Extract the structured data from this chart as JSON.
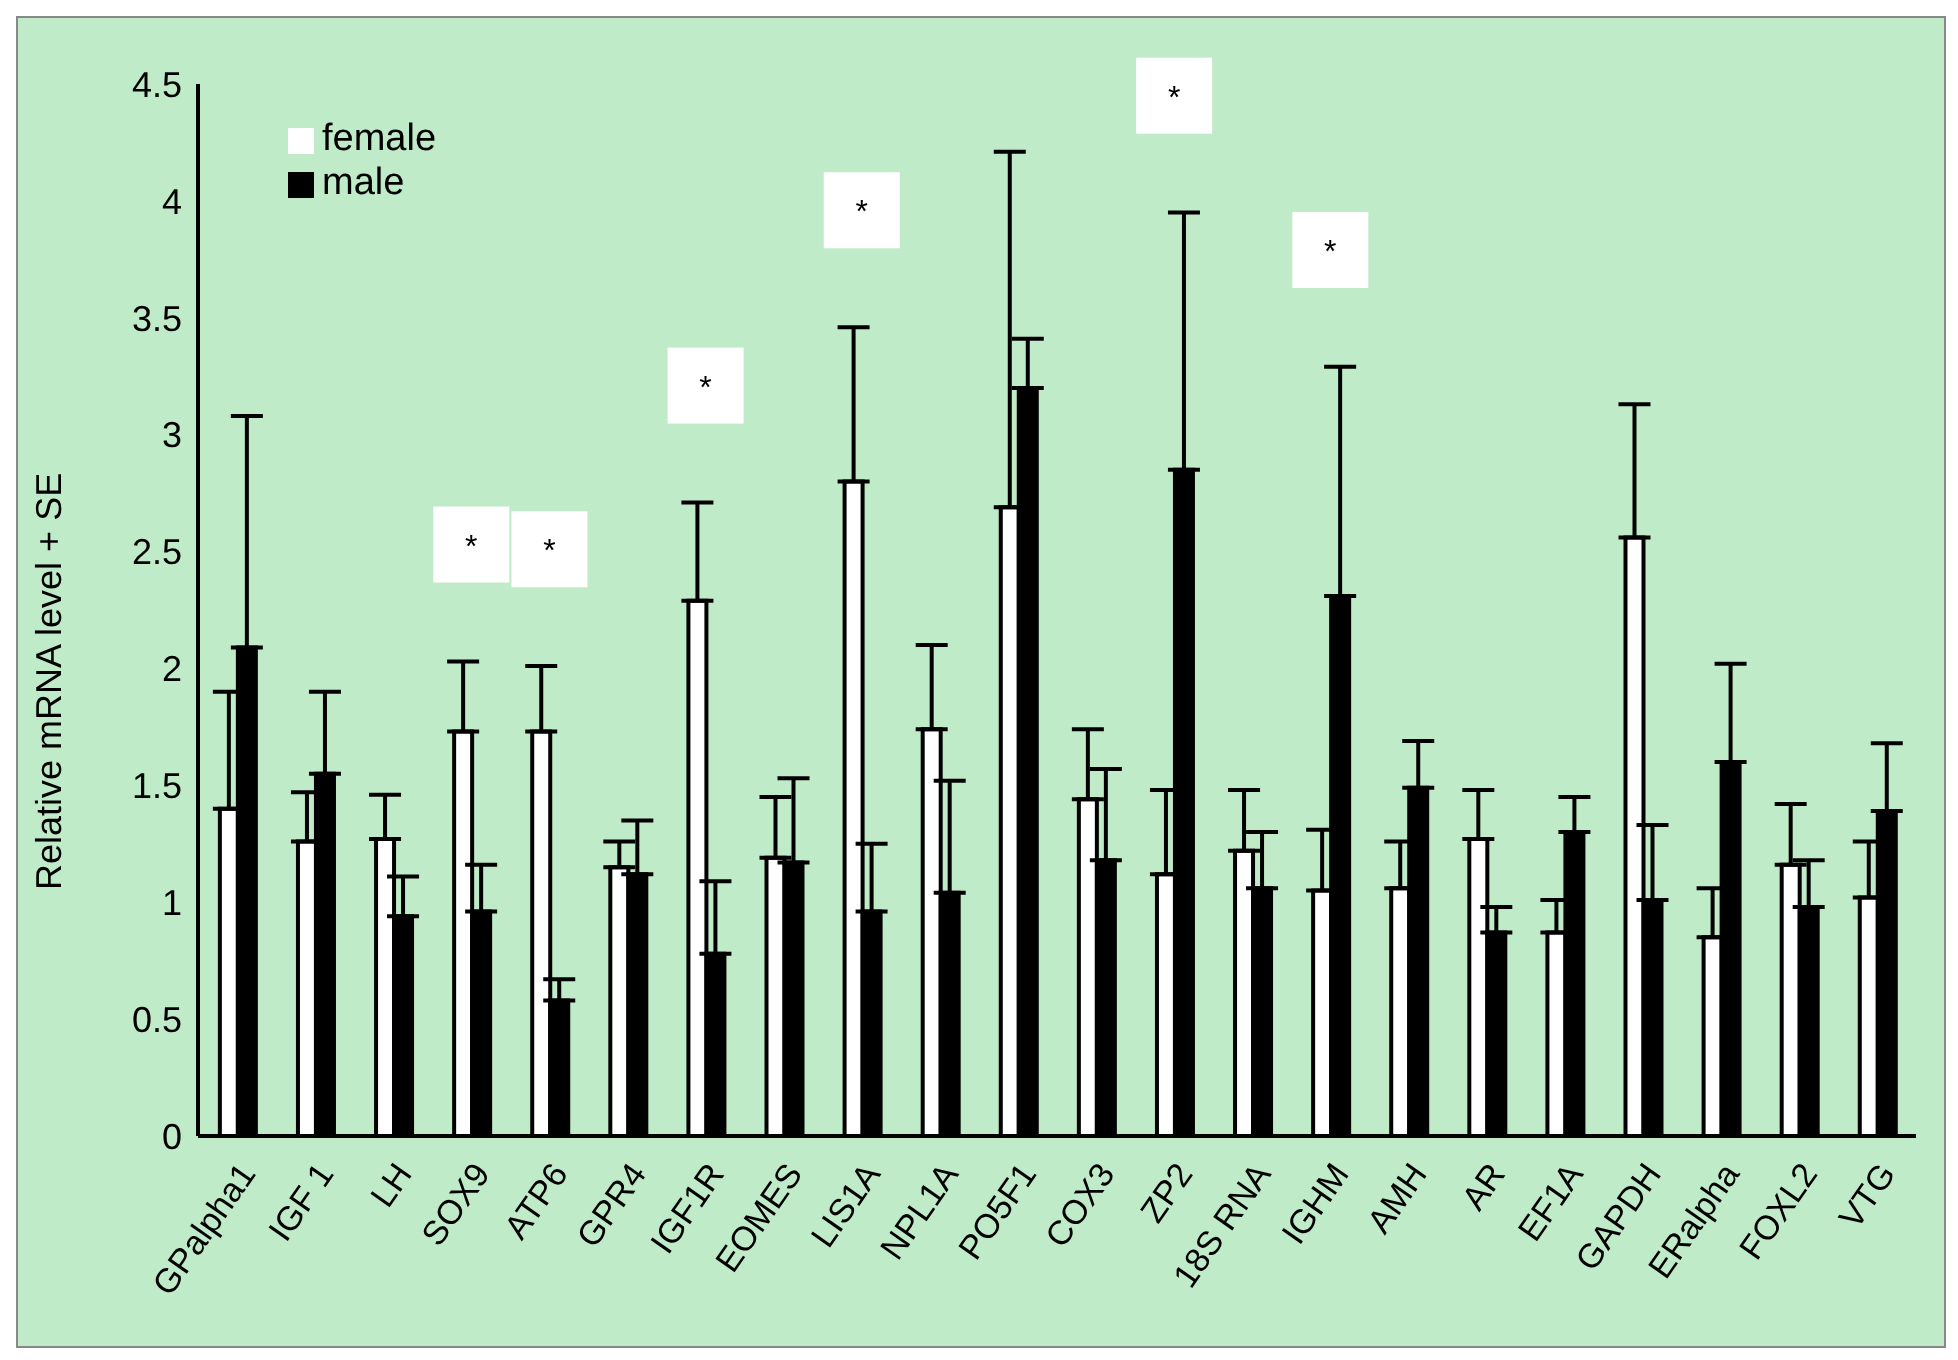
{
  "chart_data": {
    "type": "bar",
    "ylabel": "Relative mRNA  level + SE",
    "categories": [
      "GPalpha1",
      "IGF 1",
      "LH",
      "SOX9",
      "ATP6",
      "GPR4",
      "IGF1R",
      "EOMES",
      "LIS1A",
      "NPL1A",
      "PO5F1",
      "COX3",
      "ZP2",
      "18S RNA",
      "IGHM",
      "AMH",
      "AR",
      "EF1A",
      "GAPDH",
      "ERalpha",
      "FOXL2",
      "VTG"
    ],
    "series": [
      {
        "name": "female",
        "color": "#ffffff",
        "values": [
          1.4,
          1.26,
          1.27,
          1.73,
          1.73,
          1.15,
          2.29,
          1.19,
          2.8,
          1.74,
          2.69,
          1.44,
          1.12,
          1.22,
          1.05,
          1.06,
          1.27,
          0.87,
          2.56,
          0.85,
          1.16,
          1.02
        ],
        "errors": [
          [
            1.4,
            1.9
          ],
          [
            1.26,
            1.47
          ],
          [
            1.27,
            1.46
          ],
          [
            1.73,
            2.03
          ],
          [
            1.73,
            2.01
          ],
          [
            1.15,
            1.26
          ],
          [
            2.29,
            2.71
          ],
          [
            1.19,
            1.45
          ],
          [
            2.8,
            3.46
          ],
          [
            1.74,
            2.1
          ],
          [
            2.69,
            4.21
          ],
          [
            1.44,
            1.74
          ],
          [
            1.12,
            1.48
          ],
          [
            1.22,
            1.48
          ],
          [
            1.05,
            1.31
          ],
          [
            1.06,
            1.26
          ],
          [
            1.27,
            1.48
          ],
          [
            0.87,
            1.01
          ],
          [
            2.56,
            3.13
          ],
          [
            0.85,
            1.06
          ],
          [
            1.16,
            1.42
          ],
          [
            1.02,
            1.26
          ]
        ]
      },
      {
        "name": "male",
        "color": "#000000",
        "values": [
          2.09,
          1.55,
          0.94,
          0.96,
          0.58,
          1.12,
          0.78,
          1.17,
          0.96,
          1.04,
          3.2,
          1.18,
          2.85,
          1.06,
          2.31,
          1.49,
          0.87,
          1.3,
          1.01,
          1.6,
          0.98,
          1.39
        ],
        "errors": [
          [
            2.09,
            3.08
          ],
          [
            1.55,
            1.9
          ],
          [
            0.94,
            1.11
          ],
          [
            0.96,
            1.16
          ],
          [
            0.58,
            0.67
          ],
          [
            1.12,
            1.35
          ],
          [
            0.78,
            1.09
          ],
          [
            1.17,
            1.53
          ],
          [
            0.96,
            1.25
          ],
          [
            1.04,
            1.52
          ],
          [
            3.2,
            3.41
          ],
          [
            1.18,
            1.57
          ],
          [
            2.85,
            3.95
          ],
          [
            1.06,
            1.3
          ],
          [
            2.31,
            3.29
          ],
          [
            1.49,
            1.69
          ],
          [
            0.87,
            0.98
          ],
          [
            1.3,
            1.45
          ],
          [
            1.01,
            1.33
          ],
          [
            1.6,
            2.02
          ],
          [
            0.98,
            1.18
          ],
          [
            1.39,
            1.68
          ]
        ]
      }
    ],
    "annotations": [
      "*",
      "*",
      "*",
      "*",
      "*",
      "*"
    ],
    "ylim": [
      0,
      4.5
    ],
    "yticks": [
      0,
      0.5,
      1,
      1.5,
      2,
      2.5,
      3,
      3.5,
      4,
      4.5
    ],
    "grid": false,
    "legend": "top left"
  }
}
